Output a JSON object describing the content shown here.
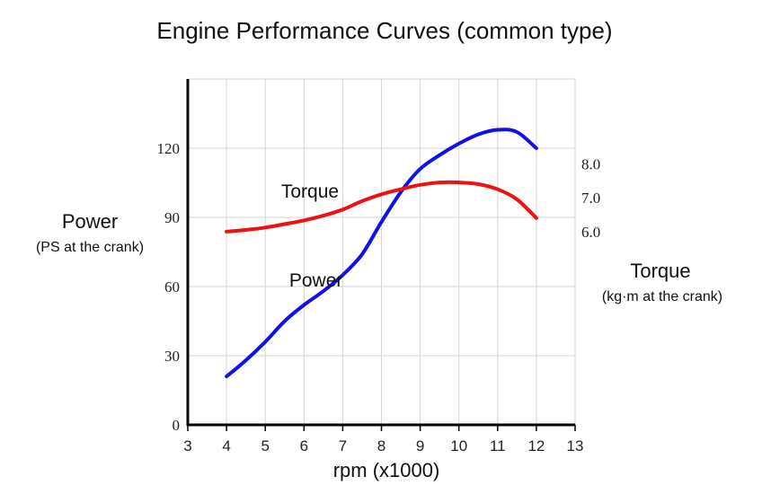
{
  "chart_data": {
    "type": "line",
    "title": "Engine Performance Curves (common type)",
    "xlabel": "rpm (x1000)",
    "x_ticks": [
      "3",
      "4",
      "5",
      "6",
      "7",
      "8",
      "9",
      "10",
      "11",
      "12",
      "13"
    ],
    "xlim": [
      3,
      13
    ],
    "y_left": {
      "label_line1": "Power",
      "label_line2": "(PS at the crank)",
      "ticks": [
        "0",
        "30",
        "60",
        "90",
        "120"
      ],
      "ylim": [
        0,
        150
      ]
    },
    "y_right": {
      "label_line1": "Torque",
      "label_line2": "(kg·m at the crank)",
      "ticks": [
        "6.0",
        "7.0",
        "8.0"
      ],
      "tick_values": [
        6.0,
        7.0,
        8.0
      ],
      "ylim": [
        0.3,
        10.5
      ]
    },
    "grid": true,
    "series": [
      {
        "name": "Power",
        "axis": "left",
        "color": "#1010e8",
        "label_at": [
          7.0,
          60
        ],
        "x": [
          4.0,
          4.5,
          5.0,
          5.5,
          6.0,
          6.5,
          7.0,
          7.5,
          8.0,
          8.5,
          9.0,
          9.5,
          10.0,
          10.5,
          11.0,
          11.5,
          12.0
        ],
        "values": [
          21,
          28,
          36,
          45,
          52,
          58,
          65,
          74,
          88,
          101,
          111,
          117,
          122,
          126,
          128,
          127,
          120
        ]
      },
      {
        "name": "Torque",
        "axis": "right",
        "color": "#ee1111",
        "label_at": [
          6.9,
          7.0
        ],
        "x": [
          4.0,
          4.5,
          5.0,
          5.5,
          6.0,
          6.5,
          7.0,
          7.5,
          8.0,
          8.5,
          9.0,
          9.5,
          10.0,
          10.5,
          11.0,
          11.5,
          12.0
        ],
        "values": [
          6.0,
          6.05,
          6.12,
          6.22,
          6.33,
          6.47,
          6.65,
          6.9,
          7.1,
          7.25,
          7.38,
          7.45,
          7.45,
          7.4,
          7.25,
          6.95,
          6.4
        ]
      }
    ]
  }
}
